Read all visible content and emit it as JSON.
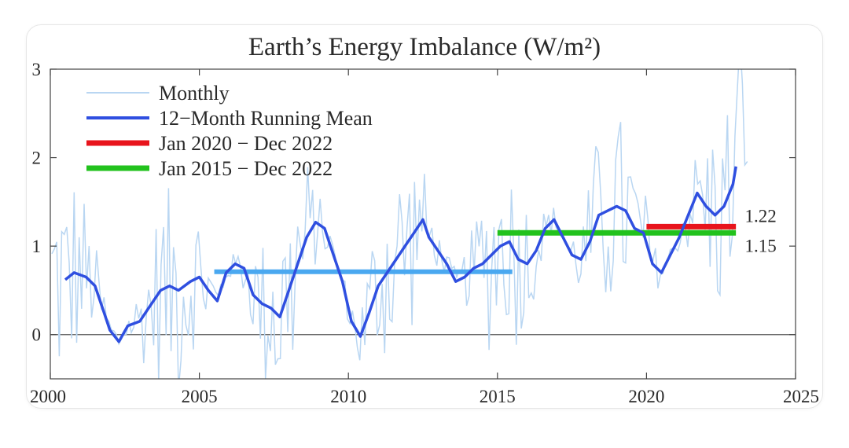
{
  "chart_data": {
    "type": "line",
    "title": "Earth’s Energy Imbalance (W/m²)",
    "xlim": [
      2000,
      2025
    ],
    "ylim": [
      -0.5,
      3
    ],
    "x_ticks": [
      "2000",
      "2005",
      "2010",
      "2015",
      "2020",
      "2025"
    ],
    "y_ticks": [
      "3",
      "2",
      "1",
      "0"
    ],
    "legend_placement": "top-left",
    "series": [
      {
        "name": "Monthly",
        "color": "#b9d6f2",
        "generated_from_running_mean": true
      },
      {
        "name": "12−Month Running Mean",
        "color": "#2f4fe0",
        "x": [
          2000.5,
          2000.8,
          2001.2,
          2001.5,
          2001.8,
          2002.0,
          2002.3,
          2002.6,
          2003.0,
          2003.3,
          2003.7,
          2004.0,
          2004.3,
          2004.7,
          2005.0,
          2005.3,
          2005.6,
          2005.9,
          2006.2,
          2006.5,
          2006.8,
          2007.1,
          2007.4,
          2007.7,
          2008.0,
          2008.3,
          2008.6,
          2008.9,
          2009.2,
          2009.5,
          2009.8,
          2010.1,
          2010.4,
          2010.7,
          2011.0,
          2011.3,
          2011.6,
          2011.9,
          2012.2,
          2012.5,
          2012.7,
          2013.0,
          2013.3,
          2013.6,
          2013.9,
          2014.2,
          2014.5,
          2014.8,
          2015.1,
          2015.4,
          2015.7,
          2016.0,
          2016.3,
          2016.6,
          2016.9,
          2017.2,
          2017.5,
          2017.8,
          2018.1,
          2018.4,
          2018.7,
          2019.0,
          2019.3,
          2019.6,
          2019.9,
          2020.2,
          2020.5,
          2020.8,
          2021.1,
          2021.4,
          2021.7,
          2022.0,
          2022.3,
          2022.6,
          2022.9,
          2023.0
        ],
        "y": [
          0.62,
          0.7,
          0.65,
          0.55,
          0.25,
          0.05,
          -0.08,
          0.1,
          0.15,
          0.3,
          0.5,
          0.55,
          0.5,
          0.6,
          0.65,
          0.5,
          0.38,
          0.7,
          0.8,
          0.75,
          0.45,
          0.35,
          0.3,
          0.2,
          0.5,
          0.8,
          1.1,
          1.27,
          1.2,
          0.9,
          0.6,
          0.15,
          -0.02,
          0.25,
          0.55,
          0.7,
          0.85,
          1.0,
          1.15,
          1.3,
          1.1,
          0.95,
          0.8,
          0.6,
          0.65,
          0.75,
          0.8,
          0.9,
          1.0,
          1.05,
          0.85,
          0.8,
          0.95,
          1.2,
          1.3,
          1.1,
          0.9,
          0.85,
          1.05,
          1.35,
          1.4,
          1.45,
          1.4,
          1.2,
          1.15,
          0.8,
          0.7,
          0.9,
          1.1,
          1.35,
          1.6,
          1.45,
          1.35,
          1.45,
          1.7,
          1.9
        ]
      },
      {
        "name": "Jan 2020 − Dec 2022",
        "color": "#e8141c",
        "x": [
          2020,
          2023
        ],
        "y": [
          1.22,
          1.22
        ]
      },
      {
        "name": "Jan 2015 − Dec 2022",
        "color": "#22c21d",
        "x": [
          2015,
          2023
        ],
        "y": [
          1.15,
          1.15
        ]
      }
    ],
    "extra_lines": [
      {
        "color": "#4aa8f0",
        "x": [
          2005.5,
          2015.5
        ],
        "y": [
          0.71,
          0.71
        ]
      }
    ],
    "annotations": [
      {
        "text": "1.22",
        "x": 2023.3,
        "y": 1.22
      },
      {
        "text": "1.15",
        "x": 2023.3,
        "y": 1.15
      }
    ]
  }
}
